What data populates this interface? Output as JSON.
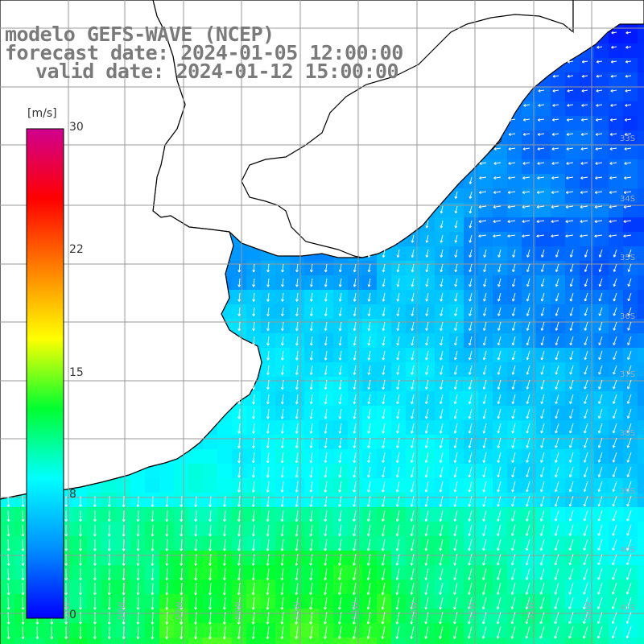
{
  "title": {
    "line1": "modelo GEFS-WAVE (NCEP)",
    "line2": "forecast date: 2024-01-05 12:00:00",
    "line3": "valid date: 2024-01-12 15:00:00"
  },
  "colorbar": {
    "unit": "[m/s]",
    "min": 0,
    "max": 30,
    "ticks": [
      "0",
      "8",
      "15",
      "22",
      "30"
    ],
    "tick_values": [
      0,
      8,
      15,
      22,
      30
    ],
    "colors": [
      "#0000ff",
      "#0090ff",
      "#00ffff",
      "#00ff30",
      "#ffff00",
      "#ff8000",
      "#ff0000",
      "#d00090"
    ]
  },
  "map": {
    "lon_range": [
      -60,
      -49
    ],
    "lat_range": [
      -41.5,
      -30.5
    ],
    "land_color": "#ffffff",
    "grid_color": "#999999",
    "arrow_color": "#ffffff",
    "lat_labels": [
      "33S",
      "34S",
      "35S",
      "36S",
      "37S",
      "38S",
      "39S",
      "40S",
      "41S"
    ],
    "lon_labels": [
      "59W",
      "58W",
      "57W",
      "56W",
      "55W",
      "54W",
      "53W",
      "52W",
      "51W",
      "50W"
    ]
  }
}
